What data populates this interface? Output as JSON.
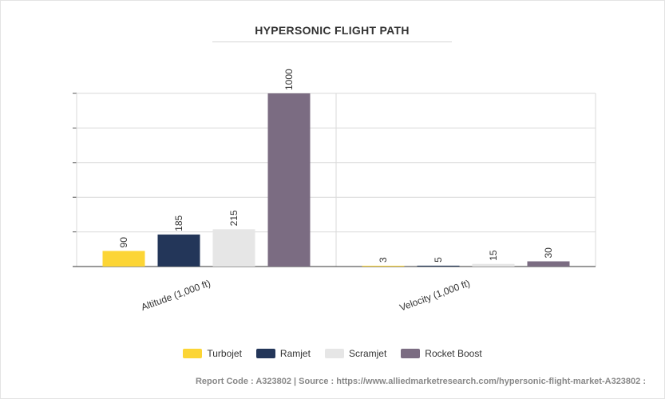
{
  "chart_data": {
    "type": "bar",
    "title": "HYPERSONIC FLIGHT PATH",
    "categories": [
      "Altitude (1,000 ft)",
      "Velocity (1,000 ft)"
    ],
    "series": [
      {
        "name": "Turbojet",
        "color": "#fcd535",
        "values": [
          90,
          3
        ]
      },
      {
        "name": "Ramjet",
        "color": "#233659",
        "values": [
          185,
          5
        ]
      },
      {
        "name": "Scramjet",
        "color": "#e6e6e6",
        "values": [
          215,
          15
        ]
      },
      {
        "name": "Rocket Boost",
        "color": "#7b6c82",
        "values": [
          1000,
          30
        ]
      }
    ],
    "ylim": [
      0,
      1000
    ],
    "grid": true,
    "legend_position": "bottom"
  },
  "footer": {
    "text": "Report Code : A323802  |  Source : https://www.alliedmarketresearch.com/hypersonic-flight-market-A323802 :"
  }
}
